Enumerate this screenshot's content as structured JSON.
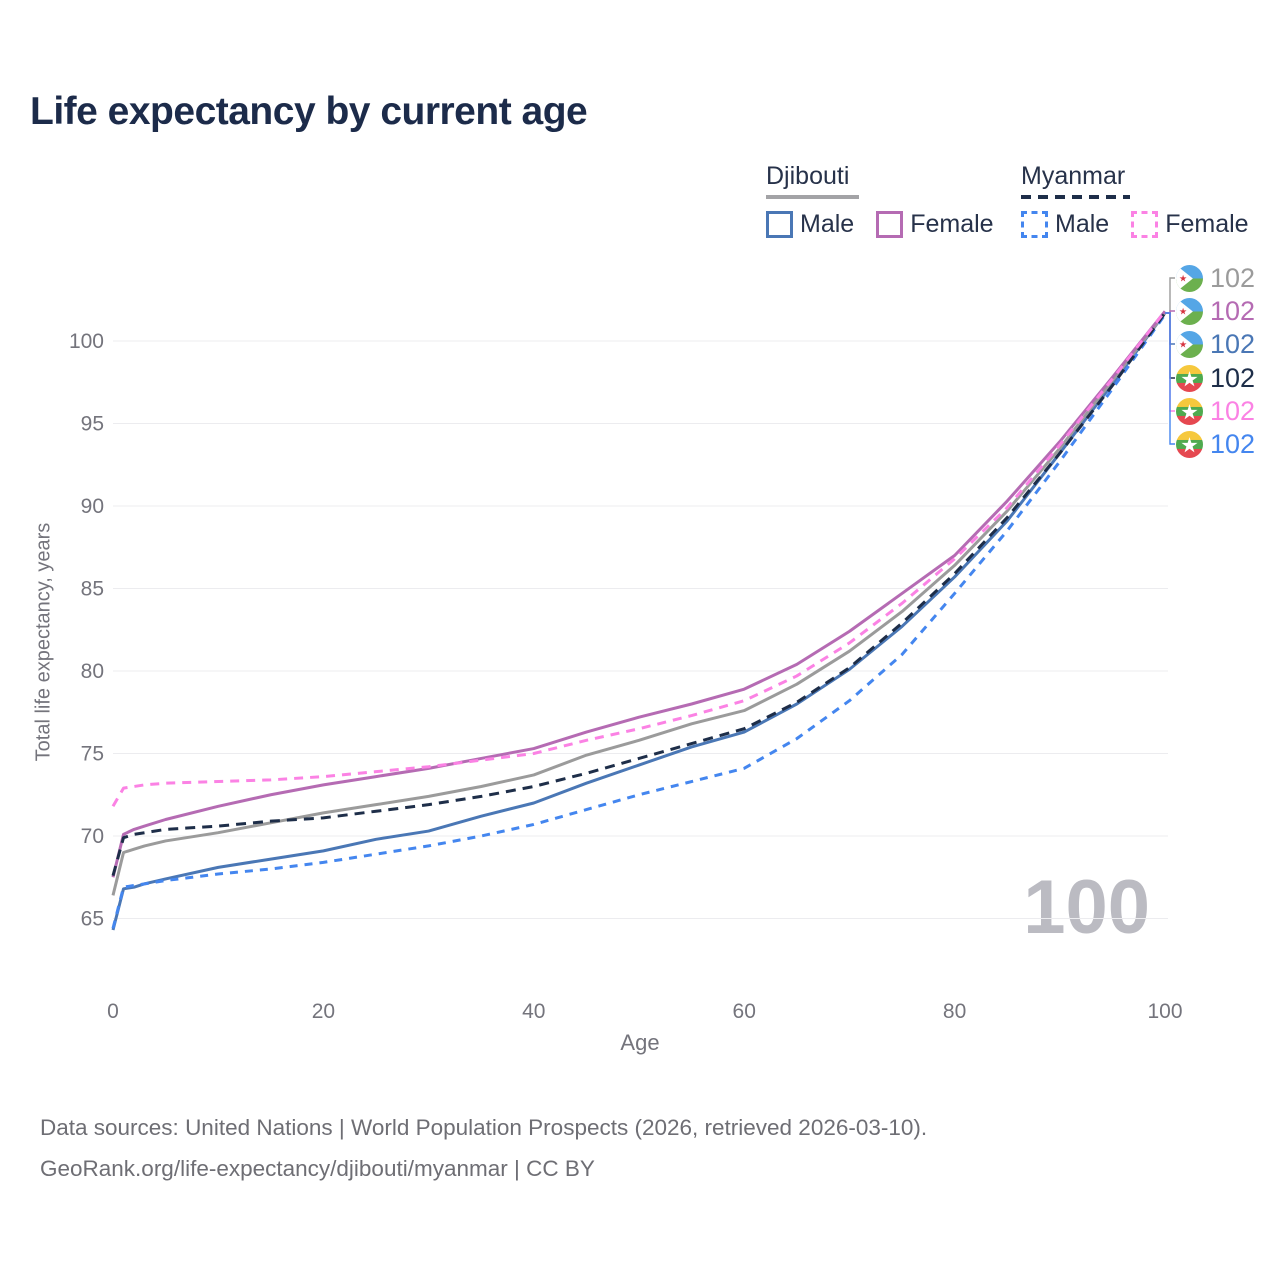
{
  "chart_data": {
    "type": "line",
    "title": "Life expectancy by current age",
    "xlabel": "Age",
    "ylabel": "Total life expectancy, years",
    "xticks": [
      0,
      20,
      40,
      60,
      80,
      100
    ],
    "yticks": [
      65,
      70,
      75,
      80,
      85,
      90,
      95,
      100
    ],
    "xlim": [
      0,
      100
    ],
    "grid": "horizontal-only",
    "age_indicator": "100",
    "legend": {
      "groups": [
        {
          "title": "Djibouti",
          "line_style": "solid",
          "line_color": "#a3a3a6",
          "items": [
            {
              "label": "Male",
              "color": "#4a77b5"
            },
            {
              "label": "Female",
              "color": "#b56bb3"
            }
          ]
        },
        {
          "title": "Myanmar",
          "line_style": "dashed",
          "line_color": "#1e2e49",
          "items": [
            {
              "label": "Male",
              "color": "#4486ef"
            },
            {
              "label": "Female",
              "color": "#fb82e4"
            }
          ]
        }
      ]
    },
    "x": [
      0,
      1,
      2,
      3,
      5,
      10,
      15,
      20,
      25,
      30,
      35,
      40,
      45,
      50,
      55,
      60,
      65,
      70,
      75,
      80,
      85,
      90,
      95,
      100
    ],
    "series": [
      {
        "id": "dj-both",
        "country": "Djibouti",
        "sex": "Both sexes",
        "flag": "djibouti",
        "color": "#9b9b9b",
        "dash": "solid",
        "end_label": "102",
        "values": [
          66.4,
          69.0,
          69.2,
          69.4,
          69.7,
          70.2,
          70.8,
          71.4,
          71.9,
          72.4,
          73.0,
          73.7,
          74.9,
          75.8,
          76.8,
          77.6,
          79.2,
          81.2,
          83.6,
          86.4,
          89.7,
          93.5,
          97.6,
          101.7
        ]
      },
      {
        "id": "dj-female",
        "country": "Djibouti",
        "sex": "Female",
        "flag": "djibouti",
        "color": "#b56bb3",
        "dash": "solid",
        "end_label": "102",
        "values": [
          67.5,
          70.1,
          70.4,
          70.6,
          71.0,
          71.8,
          72.5,
          73.1,
          73.6,
          74.1,
          74.7,
          75.3,
          76.3,
          77.2,
          78.0,
          78.9,
          80.4,
          82.4,
          84.7,
          87.0,
          90.3,
          93.9,
          97.8,
          101.8
        ]
      },
      {
        "id": "dj-male",
        "country": "Djibouti",
        "sex": "Male",
        "flag": "djibouti",
        "color": "#4a77b5",
        "dash": "solid",
        "end_label": "102",
        "values": [
          64.3,
          66.8,
          66.9,
          67.1,
          67.4,
          68.1,
          68.6,
          69.1,
          69.8,
          70.3,
          71.2,
          72.0,
          73.2,
          74.3,
          75.4,
          76.3,
          78.0,
          80.1,
          82.7,
          85.7,
          89.1,
          93.2,
          97.4,
          101.7
        ]
      },
      {
        "id": "my-both",
        "country": "Myanmar",
        "sex": "Both sexes",
        "flag": "myanmar",
        "color": "#1e2e49",
        "dash": "dashed",
        "end_label": "102",
        "values": [
          67.6,
          69.9,
          70.1,
          70.2,
          70.4,
          70.6,
          70.9,
          71.1,
          71.5,
          71.9,
          72.4,
          73.0,
          73.8,
          74.7,
          75.6,
          76.5,
          78.1,
          80.2,
          82.9,
          85.9,
          89.3,
          93.2,
          97.3,
          101.7
        ]
      },
      {
        "id": "my-female",
        "country": "Myanmar",
        "sex": "Female",
        "flag": "myanmar",
        "color": "#fb82e4",
        "dash": "dashed",
        "end_label": "102",
        "values": [
          71.8,
          72.9,
          73.0,
          73.1,
          73.2,
          73.3,
          73.4,
          73.6,
          73.9,
          74.2,
          74.6,
          75.0,
          75.8,
          76.5,
          77.3,
          78.2,
          79.7,
          81.7,
          84.1,
          86.8,
          89.9,
          93.7,
          97.7,
          101.8
        ]
      },
      {
        "id": "my-male",
        "country": "Myanmar",
        "sex": "Male",
        "flag": "myanmar",
        "color": "#4486ef",
        "dash": "dashed",
        "end_label": "102",
        "values": [
          64.4,
          66.9,
          67.0,
          67.1,
          67.3,
          67.7,
          68.0,
          68.4,
          68.9,
          69.4,
          70.0,
          70.7,
          71.6,
          72.5,
          73.3,
          74.1,
          75.9,
          78.2,
          81.0,
          84.7,
          88.5,
          92.7,
          97.1,
          101.6
        ]
      }
    ]
  },
  "footer": {
    "line1": "Data sources: United Nations | World Population Prospects (2026, retrieved 2026-03-10).",
    "line2": "GeoRank.org/life-expectancy/djibouti/myanmar | CC BY"
  }
}
